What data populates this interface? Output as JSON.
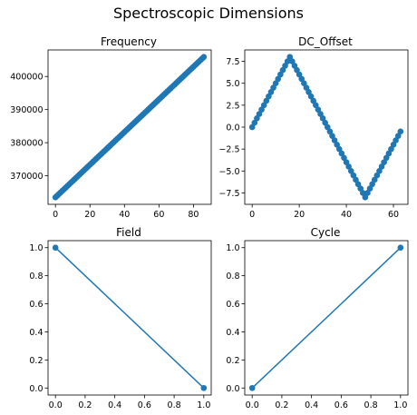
{
  "figure": {
    "title": "Spectroscopic Dimensions"
  },
  "colors": {
    "series": "#1f77b4"
  },
  "chart_data": [
    {
      "type": "scatter",
      "title": "Frequency",
      "x_range": [
        0,
        86
      ],
      "y_range": [
        363500,
        405900
      ],
      "xlim": [
        -4.3,
        90.3
      ],
      "ylim": [
        361380,
        408020
      ],
      "xticks": [
        0,
        20,
        40,
        60,
        80
      ],
      "yticks": [
        370000,
        380000,
        390000,
        400000
      ],
      "xtick_labels": [
        "0",
        "20",
        "40",
        "60",
        "80"
      ],
      "ytick_labels": [
        "370000",
        "380000",
        "390000",
        "400000"
      ],
      "line": false
    },
    {
      "type": "line",
      "title": "DC_Offset",
      "x_range": [
        0,
        63
      ],
      "y_peak": 8,
      "y_trough": -8,
      "peak_index": 16,
      "trough_index": 48,
      "xlim": [
        -3.15,
        66.15
      ],
      "ylim": [
        -8.8,
        8.8
      ],
      "xticks": [
        0,
        20,
        40,
        60
      ],
      "yticks": [
        -7.5,
        -5.0,
        -2.5,
        0.0,
        2.5,
        5.0,
        7.5
      ],
      "xtick_labels": [
        "0",
        "20",
        "40",
        "60"
      ],
      "ytick_labels": [
        "−7.5",
        "−5.0",
        "−2.5",
        "0.0",
        "2.5",
        "5.0",
        "7.5"
      ],
      "line": true
    },
    {
      "type": "line",
      "title": "Field",
      "x": [
        0,
        1
      ],
      "y": [
        1,
        0
      ],
      "xlim": [
        -0.05,
        1.05
      ],
      "ylim": [
        -0.05,
        1.05
      ],
      "xticks": [
        0,
        0.2,
        0.4,
        0.6,
        0.8,
        1.0
      ],
      "yticks": [
        0,
        0.2,
        0.4,
        0.6,
        0.8,
        1.0
      ],
      "xtick_labels": [
        "0.0",
        "0.2",
        "0.4",
        "0.6",
        "0.8",
        "1.0"
      ],
      "ytick_labels": [
        "0.0",
        "0.2",
        "0.4",
        "0.6",
        "0.8",
        "1.0"
      ],
      "line": true
    },
    {
      "type": "line",
      "title": "Cycle",
      "x": [
        0,
        1
      ],
      "y": [
        0,
        1
      ],
      "xlim": [
        -0.05,
        1.05
      ],
      "ylim": [
        -0.05,
        1.05
      ],
      "xticks": [
        0,
        0.2,
        0.4,
        0.6,
        0.8,
        1.0
      ],
      "yticks": [
        0,
        0.2,
        0.4,
        0.6,
        0.8,
        1.0
      ],
      "xtick_labels": [
        "0.0",
        "0.2",
        "0.4",
        "0.6",
        "0.8",
        "1.0"
      ],
      "ytick_labels": [
        "0.0",
        "0.2",
        "0.4",
        "0.6",
        "0.8",
        "1.0"
      ],
      "line": true
    }
  ]
}
